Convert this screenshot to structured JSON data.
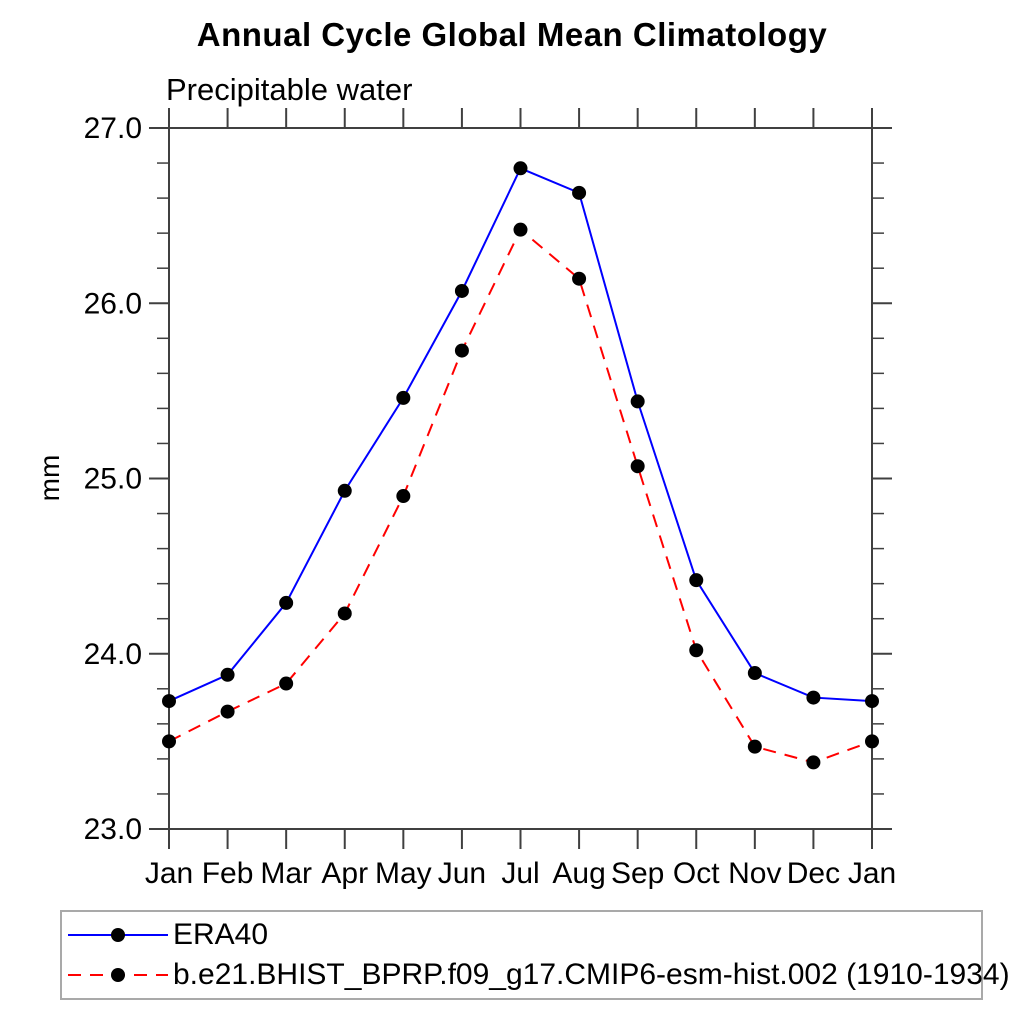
{
  "chart_data": {
    "type": "line",
    "title": "Annual Cycle Global Mean Climatology",
    "subtitle": "Precipitable water",
    "ylabel": "mm",
    "xlabel": "",
    "categories": [
      "Jan",
      "Feb",
      "Mar",
      "Apr",
      "May",
      "Jun",
      "Jul",
      "Aug",
      "Sep",
      "Oct",
      "Nov",
      "Dec",
      "Jan"
    ],
    "ylim": [
      23.0,
      27.0
    ],
    "ytick_major": [
      23.0,
      24.0,
      25.0,
      26.0,
      27.0
    ],
    "ytick_labels": [
      "23.0",
      "24.0",
      "25.0",
      "26.0",
      "27.0"
    ],
    "ytick_minor_step": 0.2,
    "grid": false,
    "legend_position": "bottom",
    "axis_color": "#404040",
    "text_color": "#000000",
    "series": [
      {
        "name": "ERA40",
        "color": "#0000ff",
        "line_style": "solid",
        "marker": "dot",
        "marker_color": "#000000",
        "values": [
          23.73,
          23.88,
          24.29,
          24.93,
          25.46,
          26.07,
          26.77,
          26.63,
          25.44,
          24.42,
          23.89,
          23.75,
          23.73
        ]
      },
      {
        "name": "b.e21.BHIST_BPRP.f09_g17.CMIP6-esm-hist.002 (1910-1934)",
        "color": "#ff0000",
        "line_style": "dashed",
        "marker": "dot",
        "marker_color": "#000000",
        "values": [
          23.5,
          23.67,
          23.83,
          24.23,
          24.9,
          25.73,
          26.42,
          26.14,
          25.07,
          24.02,
          23.47,
          23.38,
          23.5
        ]
      }
    ]
  }
}
